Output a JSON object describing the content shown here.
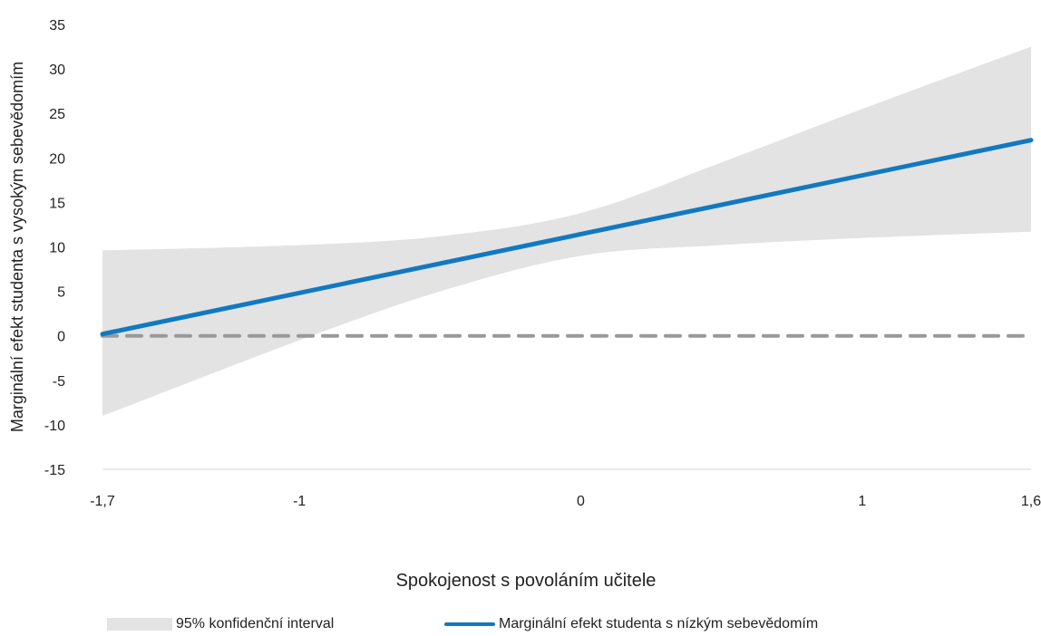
{
  "chart_data": {
    "type": "line",
    "xlabel": "Spokojenost s povoláním učitele",
    "ylabel": "Marginální efekt studenta s vysokým sebevědomím",
    "x_ticks": [
      -1.7,
      -1,
      0,
      1,
      1.6
    ],
    "x_tick_labels": [
      "-1,7",
      "-1",
      "0",
      "1",
      "1,6"
    ],
    "y_ticks": [
      -15,
      -10,
      -5,
      0,
      5,
      10,
      15,
      20,
      25,
      30,
      35
    ],
    "y_tick_labels": [
      "-15",
      "-10",
      "-5",
      "0",
      "5",
      "10",
      "15",
      "20",
      "25",
      "30",
      "35"
    ],
    "xlim": [
      -1.7,
      1.6
    ],
    "ylim": [
      -15,
      35
    ],
    "grid": false,
    "legend_position": "bottom",
    "series": [
      {
        "name": "Marginální efekt studenta s nízkým sebevědomím",
        "kind": "line",
        "color": "#1279c1",
        "x": [
          -1.7,
          1.6
        ],
        "y": [
          0.2,
          22.0
        ]
      },
      {
        "name": "95% konfidenční interval",
        "kind": "band",
        "color": "#e3e3e3",
        "x": [
          -1.7,
          -1.0,
          -0.5,
          0.0,
          0.5,
          1.0,
          1.6
        ],
        "lower": [
          -9.0,
          -0.5,
          5.0,
          9.0,
          10.2,
          11.0,
          11.7
        ],
        "upper": [
          9.6,
          10.2,
          11.2,
          13.8,
          19.5,
          25.5,
          32.5
        ]
      },
      {
        "name": "reference-zero",
        "kind": "reference",
        "color": "#999999",
        "y": 0
      }
    ]
  }
}
